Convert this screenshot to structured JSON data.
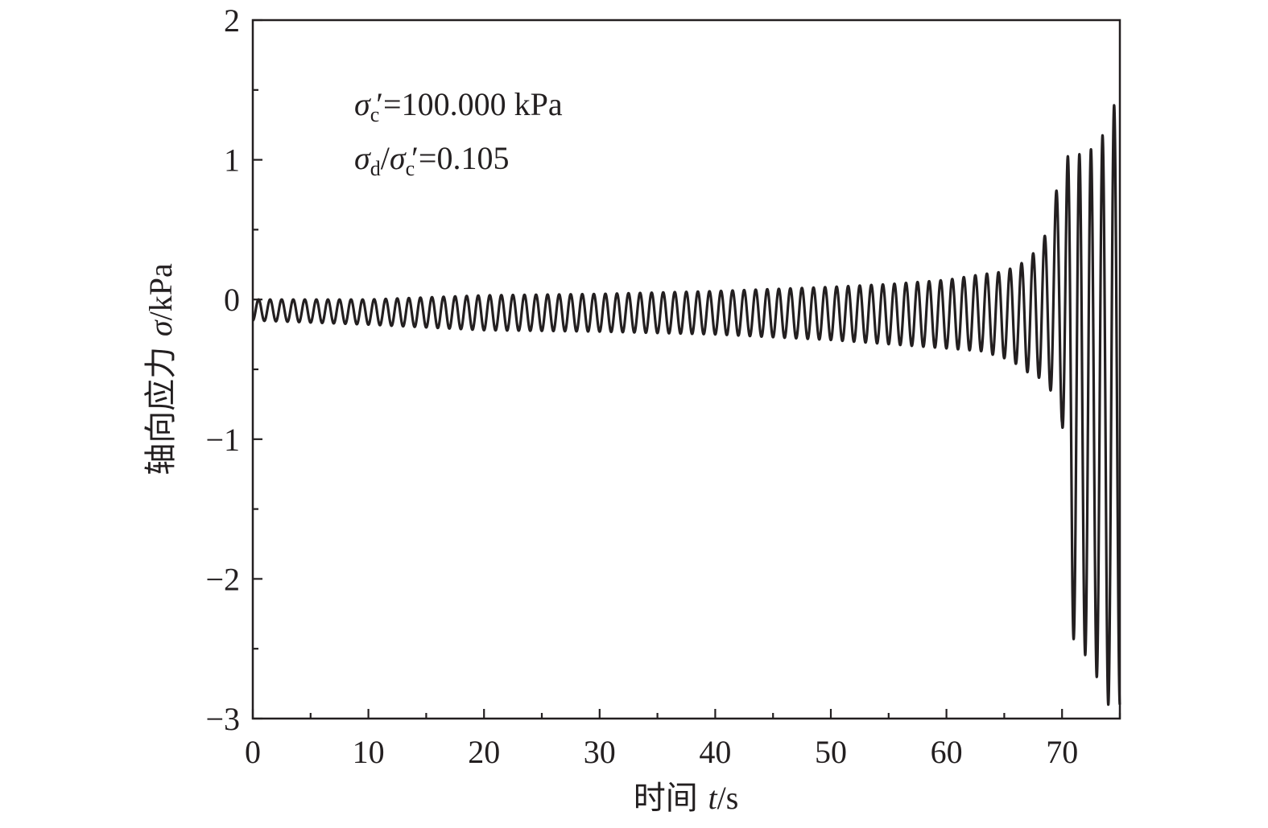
{
  "chart_data": {
    "type": "line",
    "title": "",
    "xlabel_text": "时间 ",
    "xlabel_symbol": "t",
    "xlabel_unit": "/s",
    "ylabel_text": "轴向应力 ",
    "ylabel_symbol": "σ",
    "ylabel_unit": "/kPa",
    "xlim": [
      0,
      75
    ],
    "ylim": [
      -3,
      2
    ],
    "xticks": [
      0,
      10,
      20,
      30,
      40,
      50,
      60,
      70
    ],
    "xtick_labels": [
      "0",
      "10",
      "20",
      "30",
      "40",
      "50",
      "60",
      "70"
    ],
    "yticks": [
      -3,
      -2,
      -1,
      0,
      1,
      2
    ],
    "ytick_labels": [
      "−3",
      "−2",
      "−1",
      "0",
      "1",
      "2"
    ],
    "x_minor_step": 5,
    "y_minor_step": 0.5,
    "grid": false,
    "line_color": "#231f20",
    "annotations": {
      "line1": {
        "sym": "σ",
        "sub": "c",
        "prime": "′",
        "rest": "=100.000 kPa"
      },
      "line2": {
        "sym1": "σ",
        "sub1": "d",
        "slash": "/",
        "sym2": "σ",
        "sub2": "c",
        "prime": "′",
        "rest": "=0.105"
      }
    },
    "series": [
      {
        "frequency_hz": 1,
        "peaks": [
          [
            0,
            0.0
          ],
          [
            10,
            0.0
          ],
          [
            20,
            0.03
          ],
          [
            30,
            0.04
          ],
          [
            40,
            0.06
          ],
          [
            50,
            0.09
          ],
          [
            55,
            0.11
          ],
          [
            60,
            0.14
          ],
          [
            63,
            0.18
          ],
          [
            65,
            0.2
          ],
          [
            66,
            0.24
          ],
          [
            67,
            0.28
          ],
          [
            68,
            0.38
          ],
          [
            69,
            0.53
          ],
          [
            70,
            1.02
          ],
          [
            71,
            1.03
          ],
          [
            72,
            1.05
          ],
          [
            73,
            1.1
          ],
          [
            74,
            1.25
          ],
          [
            75,
            1.53
          ]
        ],
        "troughs": [
          [
            0,
            -0.15
          ],
          [
            10,
            -0.18
          ],
          [
            20,
            -0.22
          ],
          [
            30,
            -0.23
          ],
          [
            40,
            -0.25
          ],
          [
            50,
            -0.29
          ],
          [
            55,
            -0.32
          ],
          [
            60,
            -0.35
          ],
          [
            63,
            -0.37
          ],
          [
            65,
            -0.42
          ],
          [
            66,
            -0.46
          ],
          [
            67,
            -0.52
          ],
          [
            68,
            -0.56
          ],
          [
            69,
            -0.65
          ],
          [
            70,
            -0.88
          ],
          [
            70.9,
            -2.42
          ],
          [
            71.9,
            -2.53
          ],
          [
            72.9,
            -2.68
          ],
          [
            73.9,
            -2.9
          ],
          [
            75,
            -2.9
          ]
        ]
      }
    ]
  }
}
